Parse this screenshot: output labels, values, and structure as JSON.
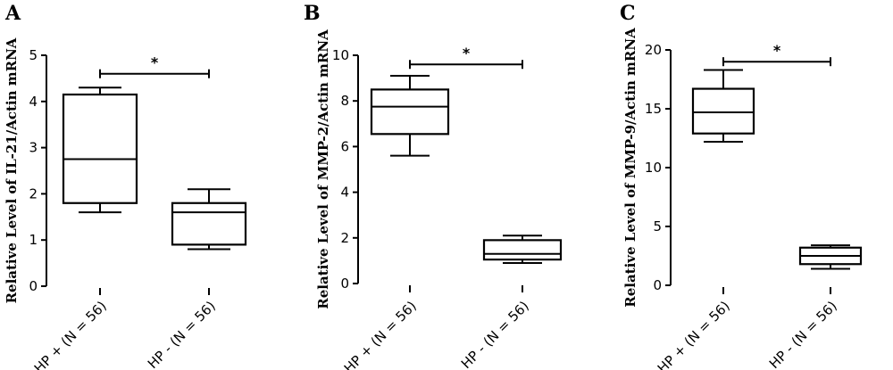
{
  "chart_data": [
    {
      "type": "box",
      "panel_label": "A",
      "ylabel": "Relative Level of IL-21/Actin mRNA",
      "ylim": [
        0,
        5
      ],
      "yticks": [
        0,
        1,
        2,
        3,
        4,
        5
      ],
      "categories": [
        "HP + (N = 56)",
        "HP - (N = 56)"
      ],
      "boxes": [
        {
          "min": 1.6,
          "q1": 1.8,
          "median": 2.75,
          "q3": 4.15,
          "max": 4.3
        },
        {
          "min": 0.8,
          "q1": 0.9,
          "median": 1.6,
          "q3": 1.8,
          "max": 2.1
        }
      ],
      "significance": {
        "from": 0,
        "to": 1,
        "y": 4.6,
        "label": "*"
      },
      "grid": false
    },
    {
      "type": "box",
      "panel_label": "B",
      "ylabel": "Relative Level of MMP-2/Actin mRNA",
      "ylim": [
        0,
        10
      ],
      "yticks": [
        0,
        2,
        4,
        6,
        8,
        10
      ],
      "categories": [
        "HP + (N = 56)",
        "HP - (N = 56)"
      ],
      "boxes": [
        {
          "min": 5.6,
          "q1": 6.55,
          "median": 7.75,
          "q3": 8.5,
          "max": 9.1
        },
        {
          "min": 0.9,
          "q1": 1.05,
          "median": 1.3,
          "q3": 1.9,
          "max": 2.1
        }
      ],
      "significance": {
        "from": 0,
        "to": 1,
        "y": 9.6,
        "label": "*"
      },
      "grid": false
    },
    {
      "type": "box",
      "panel_label": "C",
      "ylabel": "Relative Level of MMP-9/Actin mRNA",
      "ylim": [
        0,
        20
      ],
      "yticks": [
        0,
        5,
        10,
        15,
        20
      ],
      "categories": [
        "HP + (N = 56)",
        "HP - (N = 56)"
      ],
      "boxes": [
        {
          "min": 12.2,
          "q1": 12.9,
          "median": 14.7,
          "q3": 16.7,
          "max": 18.3
        },
        {
          "min": 1.4,
          "q1": 1.8,
          "median": 2.5,
          "q3": 3.2,
          "max": 3.4
        }
      ],
      "significance": {
        "from": 0,
        "to": 1,
        "y": 19.0,
        "label": "*"
      },
      "grid": false
    }
  ]
}
